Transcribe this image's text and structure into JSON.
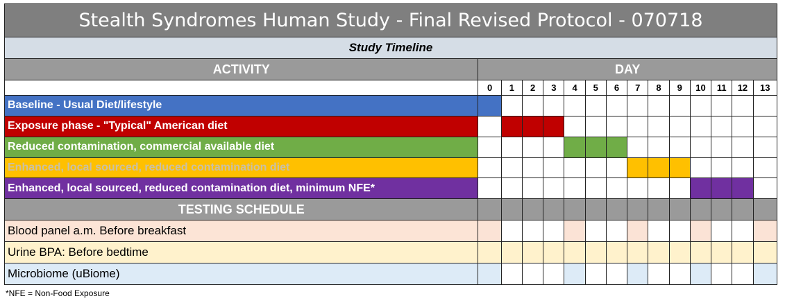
{
  "title": "Stealth Syndromes Human Study - Final Revised Protocol - 070718",
  "subtitle": "Study Timeline",
  "headers": {
    "activity": "ACTIVITY",
    "day": "DAY",
    "testing": "TESTING SCHEDULE"
  },
  "days": [
    "0",
    "1",
    "2",
    "3",
    "4",
    "5",
    "6",
    "7",
    "8",
    "9",
    "10",
    "11",
    "12",
    "13"
  ],
  "phases": [
    {
      "label": "Baseline - Usual Diet/lifestyle",
      "color": "#4472c4",
      "text_color": "#ffffff",
      "start_day": 0,
      "end_day": 0
    },
    {
      "label": "Exposure phase - \"Typical\" American diet",
      "color": "#c00000",
      "text_color": "#ffffff",
      "start_day": 1,
      "end_day": 3
    },
    {
      "label": "Reduced contamination, commercial available  diet",
      "color": "#70ad47",
      "text_color": "#ffffff",
      "start_day": 4,
      "end_day": 6
    },
    {
      "label": "Enhanced, local sourced, reduced contamination diet",
      "color": "#ffc000",
      "text_color": "#c9c0a6",
      "start_day": 7,
      "end_day": 9
    },
    {
      "label": "Enhanced, local sourced, reduced contamination diet, minimum NFE*",
      "color": "#7030a0",
      "text_color": "#ffffff",
      "start_day": 10,
      "end_day": 12
    }
  ],
  "tests": [
    {
      "label": "Blood panel a.m.  Before breakfast",
      "row_color": "#fce4d6",
      "mark_color": "#fbe3d6",
      "days": [
        0,
        4,
        7,
        10,
        13
      ]
    },
    {
      "label": "Urine BPA: Before bedtime",
      "row_color": "#fff2cc",
      "mark_color": "#fff2cc",
      "days": [
        0,
        1,
        2,
        3,
        4,
        5,
        6,
        7,
        8,
        9,
        10,
        11,
        12,
        13
      ]
    },
    {
      "label": "Microbiome (uBiome)",
      "row_color": "#ddebf7",
      "mark_color": "#ddebf7",
      "days": [
        0,
        4,
        7,
        10,
        13
      ]
    }
  ],
  "footnote": "*NFE = Non-Food Exposure"
}
